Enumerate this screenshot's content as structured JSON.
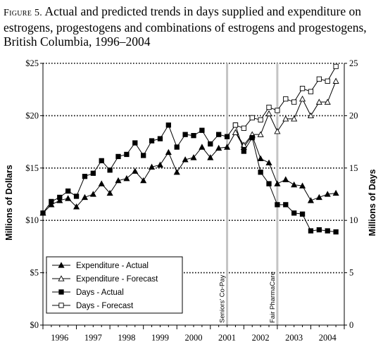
{
  "figure": {
    "label": "Figure 5.",
    "title": "Actual and predicted trends in days supplied and expenditure on estrogens, progestogens and combinations of estrogens and progestogens, British Columbia, 1996–2004"
  },
  "chart_data": {
    "type": "line",
    "x_ticks": [
      "1996",
      "1997",
      "1998",
      "1999",
      "2000",
      "2001",
      "2002",
      "2003",
      "2004"
    ],
    "x_start_year": 1996,
    "x_end_year": 2005,
    "y_left": {
      "label": "Millions of Dollars",
      "range": [
        0,
        25
      ],
      "ticks": [
        "$0",
        "$5",
        "$10",
        "$15",
        "$20",
        "$25"
      ]
    },
    "y_right": {
      "label": "Millions of Days",
      "range": [
        0,
        25
      ],
      "ticks": [
        "0",
        "5",
        "10",
        "15",
        "20",
        "25"
      ]
    },
    "grid": "dotted horizontal lines at 5, 10, 15, 20, 25",
    "events": [
      {
        "label": "Seniors' Co-Pay",
        "x": 2001.5
      },
      {
        "label": "Fair PharmaCare",
        "x": 2003.0
      }
    ],
    "legend": {
      "position": "bottom-left",
      "entries": [
        "Expenditure - Actual",
        "Expenditure - Forecast",
        "Days - Actual",
        "Days - Forecast"
      ]
    },
    "series": [
      {
        "name": "Expenditure - Actual",
        "marker": "filled-triangle",
        "x": [
          1996.0,
          1996.25,
          1996.5,
          1996.75,
          1997.0,
          1997.25,
          1997.5,
          1997.75,
          1998.0,
          1998.25,
          1998.5,
          1998.75,
          1999.0,
          1999.25,
          1999.5,
          1999.75,
          2000.0,
          2000.25,
          2000.5,
          2000.75,
          2001.0,
          2001.25,
          2001.5,
          2001.75,
          2002.0,
          2002.25,
          2002.5,
          2002.75,
          2003.0,
          2003.25,
          2003.5,
          2003.75,
          2004.0,
          2004.25,
          2004.5,
          2004.75
        ],
        "values": [
          10.7,
          11.5,
          11.9,
          12.1,
          11.3,
          12.2,
          12.5,
          13.5,
          12.6,
          13.8,
          14.0,
          14.7,
          13.8,
          15.1,
          15.3,
          16.5,
          14.6,
          15.8,
          16.0,
          17.0,
          16.0,
          16.9,
          17.0,
          18.4,
          17.0,
          18.1,
          15.9,
          15.5,
          13.5,
          13.9,
          13.4,
          13.3,
          11.9,
          12.2,
          12.5,
          12.6
        ]
      },
      {
        "name": "Expenditure - Forecast",
        "marker": "open-triangle",
        "x": [
          2001.75,
          2002.0,
          2002.25,
          2002.5,
          2002.75,
          2003.0,
          2003.25,
          2003.5,
          2003.75,
          2004.0,
          2004.25,
          2004.5,
          2004.75
        ],
        "values": [
          18.4,
          17.2,
          18.2,
          18.2,
          20.2,
          18.5,
          19.7,
          19.7,
          21.6,
          20.0,
          21.3,
          21.3,
          23.3
        ]
      },
      {
        "name": "Days - Actual",
        "marker": "filled-square",
        "x": [
          1996.0,
          1996.25,
          1996.5,
          1996.75,
          1997.0,
          1997.25,
          1997.5,
          1997.75,
          1998.0,
          1998.25,
          1998.5,
          1998.75,
          1999.0,
          1999.25,
          1999.5,
          1999.75,
          2000.0,
          2000.25,
          2000.5,
          2000.75,
          2001.0,
          2001.25,
          2001.5,
          2001.75,
          2002.0,
          2002.25,
          2002.5,
          2002.75,
          2003.0,
          2003.25,
          2003.5,
          2003.75,
          2004.0,
          2004.25,
          2004.5,
          2004.75
        ],
        "values": [
          10.7,
          11.8,
          12.2,
          12.8,
          12.3,
          14.2,
          14.5,
          15.7,
          14.8,
          16.1,
          16.3,
          17.4,
          16.2,
          17.6,
          17.8,
          19.1,
          17.0,
          18.2,
          18.1,
          18.6,
          17.3,
          18.2,
          18.0,
          19.1,
          16.6,
          17.9,
          14.6,
          13.5,
          11.5,
          11.5,
          10.7,
          10.6,
          9.0,
          9.1,
          9.0,
          8.9
        ]
      },
      {
        "name": "Days - Forecast",
        "marker": "open-square",
        "x": [
          2001.75,
          2002.0,
          2002.25,
          2002.5,
          2002.75,
          2003.0,
          2003.25,
          2003.5,
          2003.75,
          2004.0,
          2004.25,
          2004.5,
          2004.75
        ],
        "values": [
          19.1,
          18.8,
          19.8,
          19.6,
          20.8,
          20.5,
          21.6,
          21.3,
          22.6,
          22.3,
          23.5,
          23.3,
          24.7
        ]
      }
    ]
  }
}
